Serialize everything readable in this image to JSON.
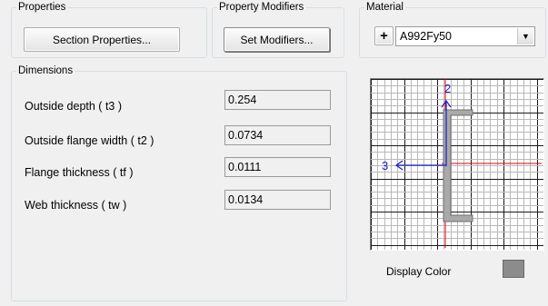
{
  "properties": {
    "legend": "Properties",
    "button": "Section Properties..."
  },
  "modifiers": {
    "legend": "Property Modifiers",
    "button": "Set Modifiers..."
  },
  "material": {
    "legend": "Material",
    "add_button": "+",
    "selected": "A992Fy50"
  },
  "dimensions": {
    "legend": "Dimensions",
    "rows": [
      {
        "label": "Outside depth  ( t3 )",
        "value": "0.254"
      },
      {
        "label": "Outside flange width  ( t2 )",
        "value": "0.0734"
      },
      {
        "label": "Flange thickness  ( tf )",
        "value": "0.0111"
      },
      {
        "label": "Web thickness  ( tw )",
        "value": "0.0134"
      }
    ]
  },
  "preview": {
    "axis_vertical": "2",
    "axis_horizontal": "3",
    "display_color_label": "Display Color",
    "display_color": "#8c8c8c"
  }
}
